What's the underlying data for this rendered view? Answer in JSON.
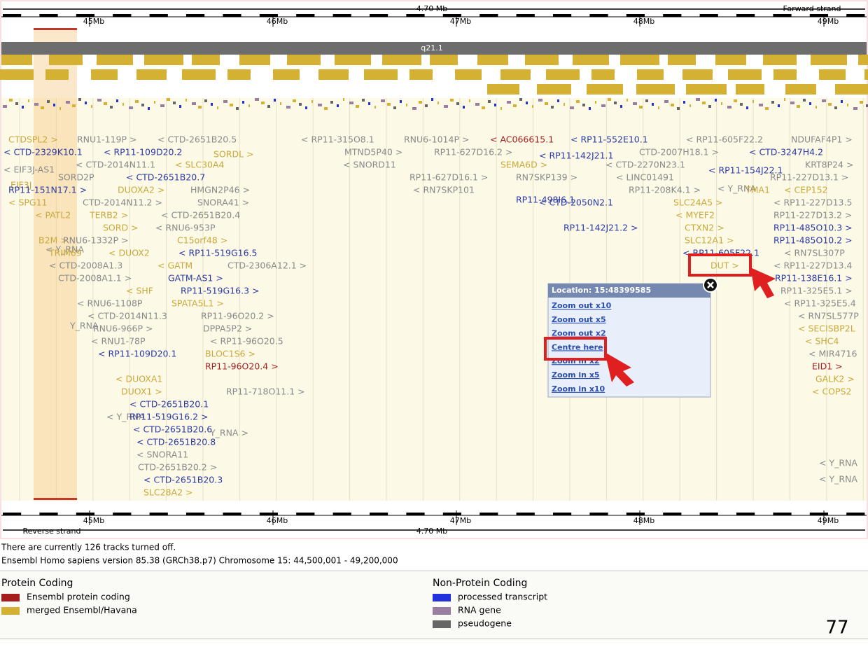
{
  "header": {
    "scale": "4.70 Mb",
    "strand": "Forward strand"
  },
  "ruler_ticks": [
    "45Mb",
    "46Mb",
    "47Mb",
    "48Mb",
    "49Mb"
  ],
  "band": "q21.1",
  "genes": [
    "CTDSPL2 >",
    "< CTD-2329K10.1",
    "< EIF3J-AS1",
    "EIF3J",
    "RP11-151N17.1 >",
    "< SPG11",
    "< PATL2",
    "B2M >",
    "< Y_RNA",
    "TRIM69",
    "< CTD-2008A1.3",
    "CTD-2008A1.1 >",
    "< RNU6-1108P",
    "< CTD-2014N11.3",
    "Y_RNA",
    "RNU6-966P >",
    "< RNU1-78P",
    "< RP11-109D20.1",
    "RNU1-119P >",
    "< RP11-109D20.2",
    "< CTD-2014N11.1",
    "SORD2P",
    "< CTD-2651B20.7",
    "DUOXA2 >",
    "HMGN2P46 >",
    "CTD-2014N11.2 >",
    "SNORA41 >",
    "TERB2 >",
    "< CTD-2651B20.4",
    "SORD >",
    "< RNU6-953P",
    "RNU6-1332P >",
    "C15orf48 >",
    "< DUOX2",
    "< RP11-519G16.5",
    "< GATM",
    "CTD-2306A12.1 >",
    "GATM-AS1 >",
    "< SHF",
    "RP11-519G16.3 >",
    "SPATA5L1 >",
    "RP11-96O20.2 >",
    "DPPA5P2 >",
    "< RP11-96O20.5",
    "BLOC1S6 >",
    "RP11-96O20.4 >",
    "< DUOXA1",
    "DUOX1 >",
    "RP11-718O11.1 >",
    "< CTD-2651B20.1",
    "< Y_RNA",
    "RP11-519G16.2 >",
    "< CTD-2651B20.6",
    "Y_RNA >",
    "< CTD-2651B20.8",
    "< SNORA11",
    "CTD-2651B20.2 >",
    "< CTD-2651B20.3",
    "SLC28A2 >",
    "< CTD-2651B20.5",
    "SORDL >",
    "< SLC30A4",
    "< RP11-315O8.1",
    "RNU6-1014P >",
    "< AC066615.1",
    "< RP11-552E10.1",
    "MTND5P40 >",
    "RP11-627D16.2 >",
    "< RP11-142J21.1",
    "< SNORD11",
    "SEMA6D >",
    "RP11-627D16.1 >",
    "RN7SKP139 >",
    "< RN7SKP101",
    "RP11-498I6.1",
    "< CTD-2050N2.1",
    "RP11-142J21.2 >",
    "< RP11-605F22.2",
    "NDUFAF4P1 >",
    "CTD-2007H18.1 >",
    "< CTD-3247H4.2",
    "< CTD-2270N23.1",
    "KRT8P24 >",
    "< LINC01491",
    "< RP11-154J22.1",
    "RP11-227D13.1 >",
    "RP11-208K4.1 >",
    "< Y_RNA",
    "TMA1",
    "< CEP152",
    "SLC24A5 >",
    "< RP11-227D13.5",
    "< MYEF2",
    "RP11-227D13.2 >",
    "CTXN2 >",
    "RP11-485O10.3 >",
    "SLC12A1 >",
    "RP11-485O10.2 >",
    "< RP11-605F22.1",
    "< RN7SL307P",
    "DUT >",
    "< RP11-227D13.4",
    "RP11-138E16.1 >",
    "RP11-325E5.1 >",
    "< RP11-325E5.4",
    "< RN7SL577P",
    "< SECISBP2L",
    "< SHC4",
    "< MIR4716",
    "EID1 >",
    "GALK2 >",
    "< COPS2",
    "< Y_RNA",
    "< Y_RNA"
  ],
  "popup": {
    "title": "Location: 15:48399585",
    "links": [
      "Zoom out x10",
      "Zoom out x5",
      "Zoom out x2",
      "Centre here",
      "Zoom in x2",
      "Zoom in x5",
      "Zoom in x10"
    ]
  },
  "footer_ruler": {
    "strand": "Reverse strand",
    "scale": "4.70 Mb"
  },
  "info": [
    "There are currently 126 tracks turned off.",
    "Ensembl Homo sapiens version 85.38 (GRCh38.p7) Chromosome 15: 44,500,001 - 49,200,000"
  ],
  "legend": {
    "protein_coding": {
      "title": "Protein Coding",
      "items": [
        {
          "label": "Ensembl protein coding",
          "color": "#a51d1d"
        },
        {
          "label": "merged Ensembl/Havana",
          "color": "#d4b132"
        }
      ]
    },
    "non_protein_coding": {
      "title": "Non-Protein Coding",
      "items": [
        {
          "label": "processed transcript",
          "color": "#2233dd"
        },
        {
          "label": "RNA gene",
          "color": "#9a7ea2"
        },
        {
          "label": "pseudogene",
          "color": "#666666"
        }
      ]
    }
  },
  "page_number": "77"
}
